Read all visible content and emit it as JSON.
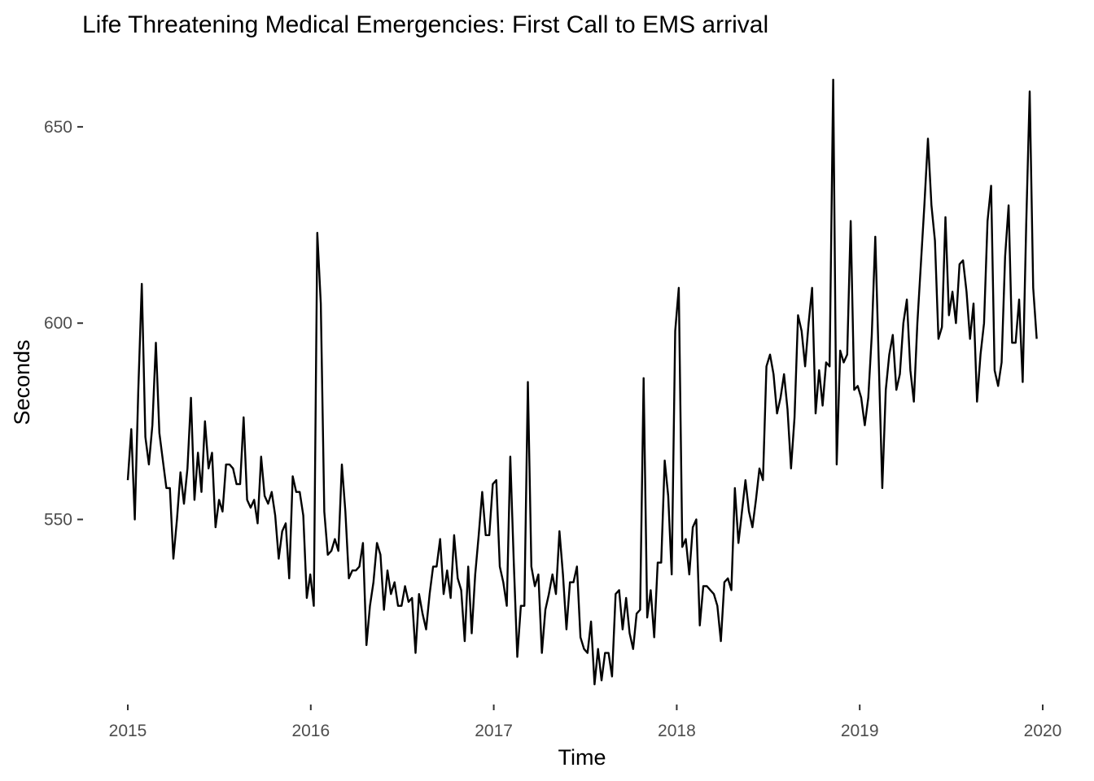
{
  "chart_data": {
    "type": "line",
    "title": "Life Threatening Medical Emergencies: First Call to EMS arrival",
    "xlabel": "Time",
    "ylabel": "Seconds",
    "xlim": [
      2015,
      2020
    ],
    "ylim": [
      507,
      662
    ],
    "x_ticks": [
      {
        "value": 2015,
        "label": "2015"
      },
      {
        "value": 2016,
        "label": "2016"
      },
      {
        "value": 2017,
        "label": "2017"
      },
      {
        "value": 2018,
        "label": "2018"
      },
      {
        "value": 2019,
        "label": "2019"
      },
      {
        "value": 2020,
        "label": "2020"
      }
    ],
    "y_ticks": [
      {
        "value": 550,
        "label": "550"
      },
      {
        "value": 600,
        "label": "600"
      },
      {
        "value": 650,
        "label": "650"
      }
    ],
    "grid": false,
    "legend": "none",
    "line_color": "#000000",
    "series": [
      {
        "frequency": "weekly",
        "start": 2015.0,
        "step_years": 0.019178,
        "values": [
          560,
          573,
          550,
          583,
          610,
          571,
          564,
          574,
          595,
          572,
          565,
          558,
          558,
          540,
          550,
          562,
          554,
          563,
          581,
          555,
          567,
          557,
          575,
          563,
          567,
          548,
          555,
          552,
          564,
          564,
          563,
          559,
          559,
          576,
          555,
          553,
          555,
          549,
          566,
          556,
          554,
          557,
          551,
          540,
          547,
          549,
          535,
          561,
          557,
          557,
          551,
          530,
          536,
          528,
          623,
          605,
          552,
          541,
          542,
          545,
          542,
          564,
          552,
          535,
          537,
          537,
          538,
          544,
          518,
          528,
          534,
          544,
          541,
          527,
          537,
          531,
          534,
          528,
          528,
          533,
          529,
          530,
          516,
          531,
          526,
          522,
          531,
          538,
          538,
          545,
          531,
          537,
          530,
          546,
          535,
          532,
          519,
          538,
          521,
          536,
          546,
          557,
          546,
          546,
          559,
          560,
          538,
          534,
          528,
          566,
          539,
          515,
          528,
          528,
          585,
          538,
          533,
          536,
          516,
          527,
          531,
          536,
          531,
          547,
          536,
          522,
          534,
          534,
          538,
          520,
          517,
          516,
          524,
          508,
          517,
          509,
          516,
          516,
          510,
          531,
          532,
          522,
          530,
          521,
          517,
          526,
          527,
          586,
          525,
          532,
          520,
          539,
          539,
          565,
          556,
          536,
          598,
          609,
          543,
          545,
          536,
          548,
          550,
          523,
          533,
          533,
          532,
          531,
          528,
          519,
          534,
          535,
          532,
          558,
          544,
          552,
          560,
          552,
          548,
          555,
          563,
          560,
          589,
          592,
          587,
          577,
          581,
          587,
          578,
          563,
          576,
          602,
          598,
          589,
          600,
          609,
          577,
          588,
          579,
          590,
          589,
          662,
          564,
          593,
          590,
          592,
          626,
          583,
          584,
          581,
          574,
          581,
          597,
          622,
          590,
          558,
          583,
          592,
          597,
          583,
          587,
          600,
          606,
          588,
          580,
          600,
          615,
          630,
          647,
          630,
          621,
          596,
          599,
          627,
          602,
          608,
          600,
          615,
          616,
          608,
          596,
          605,
          580,
          592,
          600,
          626,
          635,
          588,
          584,
          590,
          617,
          630,
          595,
          595,
          606,
          585,
          625,
          659,
          609,
          596
        ]
      }
    ]
  }
}
